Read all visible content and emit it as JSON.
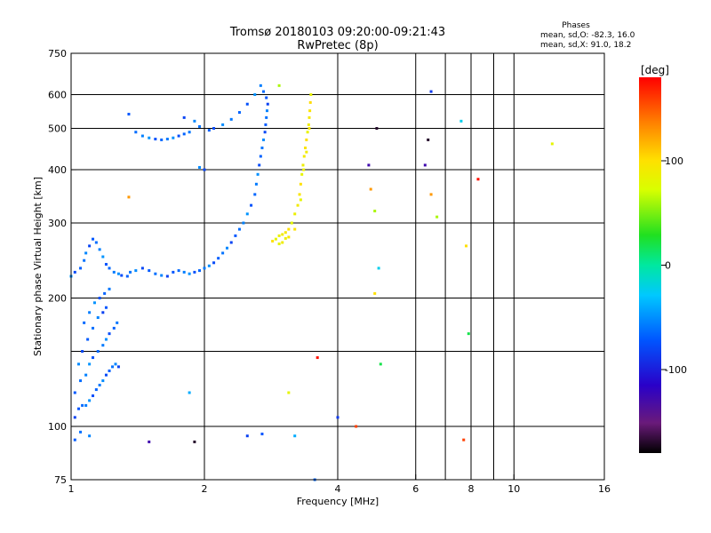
{
  "chart_data": {
    "type": "scatter",
    "title": "Tromsø 20180103 09:20:00-09:21:43",
    "subtitle": "RwPretec (8p)",
    "xlabel": "Frequency [MHz]",
    "ylabel": "Stationary phase Virtual Height [km]",
    "x_scale": "log",
    "y_scale": "log",
    "xlim": [
      1,
      16
    ],
    "ylim": [
      75,
      750
    ],
    "x_ticks": [
      1,
      2,
      4,
      6,
      8,
      10,
      16
    ],
    "x_tick_labels": [
      "1",
      "2",
      "4",
      "6",
      "8",
      "10",
      "16"
    ],
    "x_grid": [
      1,
      2,
      4,
      6,
      7,
      8,
      9,
      10
    ],
    "y_ticks": [
      75,
      100,
      200,
      300,
      400,
      500,
      600,
      750
    ],
    "y_tick_labels": [
      "75",
      "100",
      "200",
      "300",
      "400",
      "500",
      "600",
      "750"
    ],
    "y_grid": [
      100,
      150,
      200,
      300,
      400,
      500,
      600
    ],
    "grid": true,
    "phases_legend": {
      "title": "Phases",
      "line1": "mean, sd,O: -82.3, 16.0",
      "line2": "mean, sd,X:  91.0, 18.2"
    },
    "colorbar": {
      "label": "[deg]",
      "range": [
        -180,
        180
      ],
      "ticks": [
        100,
        0,
        -100
      ],
      "tick_labels": [
        "100",
        "0",
        "-100"
      ]
    },
    "series": [
      {
        "mode": "O",
        "phase_deg": -82,
        "points": [
          [
            1.02,
            105
          ],
          [
            1.04,
            110
          ],
          [
            1.06,
            112
          ],
          [
            1.08,
            112
          ],
          [
            1.1,
            115
          ],
          [
            1.12,
            118
          ],
          [
            1.14,
            122
          ],
          [
            1.16,
            125
          ],
          [
            1.18,
            128
          ],
          [
            1.2,
            132
          ],
          [
            1.22,
            135
          ],
          [
            1.24,
            138
          ],
          [
            1.26,
            140
          ],
          [
            1.28,
            138
          ],
          [
            1.02,
            120
          ],
          [
            1.05,
            128
          ],
          [
            1.08,
            132
          ],
          [
            1.1,
            140
          ],
          [
            1.12,
            145
          ],
          [
            1.15,
            150
          ],
          [
            1.18,
            155
          ],
          [
            1.2,
            160
          ],
          [
            1.22,
            165
          ],
          [
            1.25,
            170
          ],
          [
            1.27,
            175
          ],
          [
            1.04,
            140
          ],
          [
            1.06,
            150
          ],
          [
            1.09,
            160
          ],
          [
            1.12,
            170
          ],
          [
            1.15,
            180
          ],
          [
            1.18,
            185
          ],
          [
            1.2,
            190
          ],
          [
            1.07,
            175
          ],
          [
            1.1,
            185
          ],
          [
            1.13,
            195
          ],
          [
            1.16,
            200
          ],
          [
            1.19,
            205
          ],
          [
            1.22,
            210
          ],
          [
            1.0,
            225
          ],
          [
            1.02,
            230
          ],
          [
            1.05,
            235
          ],
          [
            1.07,
            245
          ],
          [
            1.08,
            255
          ],
          [
            1.1,
            265
          ],
          [
            1.12,
            275
          ],
          [
            1.14,
            270
          ],
          [
            1.16,
            260
          ],
          [
            1.18,
            250
          ],
          [
            1.2,
            240
          ],
          [
            1.22,
            235
          ],
          [
            1.25,
            230
          ],
          [
            1.28,
            228
          ],
          [
            1.3,
            226
          ],
          [
            1.34,
            225
          ],
          [
            1.36,
            230
          ],
          [
            1.4,
            232
          ],
          [
            1.45,
            235
          ],
          [
            1.5,
            232
          ],
          [
            1.55,
            228
          ],
          [
            1.6,
            226
          ],
          [
            1.65,
            225
          ],
          [
            1.7,
            230
          ],
          [
            1.75,
            232
          ],
          [
            1.8,
            230
          ],
          [
            1.85,
            228
          ],
          [
            1.9,
            230
          ],
          [
            1.95,
            232
          ],
          [
            2.0,
            235
          ],
          [
            2.05,
            238
          ],
          [
            2.1,
            242
          ],
          [
            2.15,
            248
          ],
          [
            2.2,
            255
          ],
          [
            2.25,
            262
          ],
          [
            2.3,
            270
          ],
          [
            2.35,
            280
          ],
          [
            2.4,
            290
          ],
          [
            2.45,
            300
          ],
          [
            2.5,
            315
          ],
          [
            2.55,
            330
          ],
          [
            2.6,
            350
          ],
          [
            2.62,
            370
          ],
          [
            2.64,
            390
          ],
          [
            2.66,
            410
          ],
          [
            2.68,
            430
          ],
          [
            2.7,
            450
          ],
          [
            2.72,
            470
          ],
          [
            2.74,
            490
          ],
          [
            2.75,
            510
          ],
          [
            2.76,
            530
          ],
          [
            2.77,
            550
          ],
          [
            2.78,
            570
          ],
          [
            2.76,
            590
          ],
          [
            2.72,
            610
          ],
          [
            2.68,
            630
          ],
          [
            2.6,
            600
          ],
          [
            2.5,
            570
          ],
          [
            2.4,
            545
          ],
          [
            2.3,
            525
          ],
          [
            2.2,
            510
          ],
          [
            2.1,
            500
          ],
          [
            2.05,
            495
          ],
          [
            1.95,
            505
          ],
          [
            1.9,
            520
          ],
          [
            1.8,
            530
          ],
          [
            1.35,
            540
          ],
          [
            1.4,
            490
          ],
          [
            1.45,
            480
          ],
          [
            1.5,
            475
          ],
          [
            1.55,
            472
          ],
          [
            1.6,
            470
          ],
          [
            1.65,
            472
          ],
          [
            1.7,
            475
          ],
          [
            1.75,
            480
          ],
          [
            1.8,
            485
          ],
          [
            1.85,
            490
          ],
          [
            1.95,
            405
          ],
          [
            2.0,
            400
          ],
          [
            1.02,
            93
          ],
          [
            1.05,
            97
          ],
          [
            1.1,
            95
          ],
          [
            2.5,
            95
          ],
          [
            2.7,
            96
          ],
          [
            3.55,
            75
          ]
        ]
      },
      {
        "mode": "X",
        "phase_deg": 91,
        "points": [
          [
            2.9,
            275
          ],
          [
            2.95,
            280
          ],
          [
            3.0,
            282
          ],
          [
            3.05,
            285
          ],
          [
            3.1,
            290
          ],
          [
            3.15,
            300
          ],
          [
            3.2,
            315
          ],
          [
            3.25,
            330
          ],
          [
            3.28,
            350
          ],
          [
            3.3,
            370
          ],
          [
            3.32,
            390
          ],
          [
            3.34,
            410
          ],
          [
            3.36,
            430
          ],
          [
            3.38,
            450
          ],
          [
            3.4,
            470
          ],
          [
            3.42,
            490
          ],
          [
            3.44,
            510
          ],
          [
            3.45,
            530
          ],
          [
            3.46,
            550
          ],
          [
            3.47,
            575
          ],
          [
            3.48,
            600
          ],
          [
            3.0,
            270
          ],
          [
            3.1,
            278
          ],
          [
            3.2,
            290
          ],
          [
            3.3,
            340
          ],
          [
            3.35,
            400
          ],
          [
            3.4,
            440
          ],
          [
            3.45,
            500
          ],
          [
            2.85,
            272
          ],
          [
            2.95,
            268
          ],
          [
            3.05,
            276
          ]
        ]
      },
      {
        "mode": "noise",
        "phase_deg": 0,
        "points": [
          [
            4.9,
            500
          ],
          [
            4.7,
            410
          ],
          [
            4.75,
            360
          ],
          [
            4.85,
            320
          ],
          [
            4.95,
            235
          ],
          [
            4.85,
            205
          ],
          [
            5.0,
            140
          ],
          [
            4.4,
            100
          ],
          [
            4.0,
            105
          ],
          [
            3.6,
            145
          ],
          [
            3.1,
            120
          ],
          [
            3.2,
            95
          ],
          [
            6.4,
            470
          ],
          [
            6.3,
            410
          ],
          [
            6.5,
            350
          ],
          [
            6.7,
            310
          ],
          [
            7.6,
            520
          ],
          [
            7.8,
            265
          ],
          [
            7.9,
            165
          ],
          [
            7.7,
            93
          ],
          [
            6.5,
            610
          ],
          [
            8.3,
            380
          ],
          [
            12.2,
            460
          ],
          [
            1.85,
            120
          ],
          [
            1.9,
            92
          ],
          [
            1.5,
            92
          ],
          [
            1.35,
            345
          ],
          [
            2.95,
            630
          ]
        ]
      }
    ]
  }
}
